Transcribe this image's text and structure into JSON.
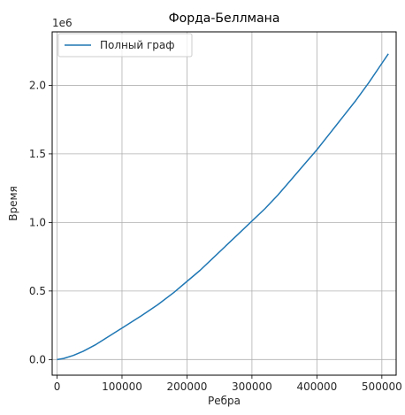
{
  "chart_data": {
    "type": "line",
    "title": "Форда-Беллмана",
    "xlabel": "Ребра",
    "ylabel": "Время",
    "y_offset_label": "1e6",
    "xlim": [
      -7500,
      522000
    ],
    "ylim": [
      -0.114,
      2.39
    ],
    "x_ticks": [
      0,
      100000,
      200000,
      300000,
      400000,
      500000
    ],
    "x_tick_labels": [
      "0",
      "100000",
      "200000",
      "300000",
      "400000",
      "500000"
    ],
    "y_ticks": [
      0.0,
      0.5,
      1.0,
      1.5,
      2.0
    ],
    "y_tick_labels": [
      "0.0",
      "0.5",
      "1.0",
      "1.5",
      "2.0"
    ],
    "grid": true,
    "legend_position": "top-left",
    "colors": {
      "series": "#1f77b4",
      "grid": "#b0b0b0",
      "axes": "#000000"
    },
    "series": [
      {
        "name": "Полный граф",
        "x": [
          0,
          10000,
          25000,
          40000,
          60000,
          80000,
          100000,
          130000,
          155000,
          180000,
          200000,
          220000,
          240000,
          260000,
          280000,
          300000,
          320000,
          340000,
          360000,
          380000,
          400000,
          420000,
          440000,
          460000,
          480000,
          500000,
          510000
        ],
        "y": [
          0.0,
          0.008,
          0.03,
          0.06,
          0.11,
          0.17,
          0.23,
          0.32,
          0.4,
          0.49,
          0.57,
          0.65,
          0.74,
          0.83,
          0.92,
          1.01,
          1.1,
          1.2,
          1.31,
          1.42,
          1.53,
          1.65,
          1.77,
          1.89,
          2.02,
          2.16,
          2.23
        ]
      }
    ]
  }
}
